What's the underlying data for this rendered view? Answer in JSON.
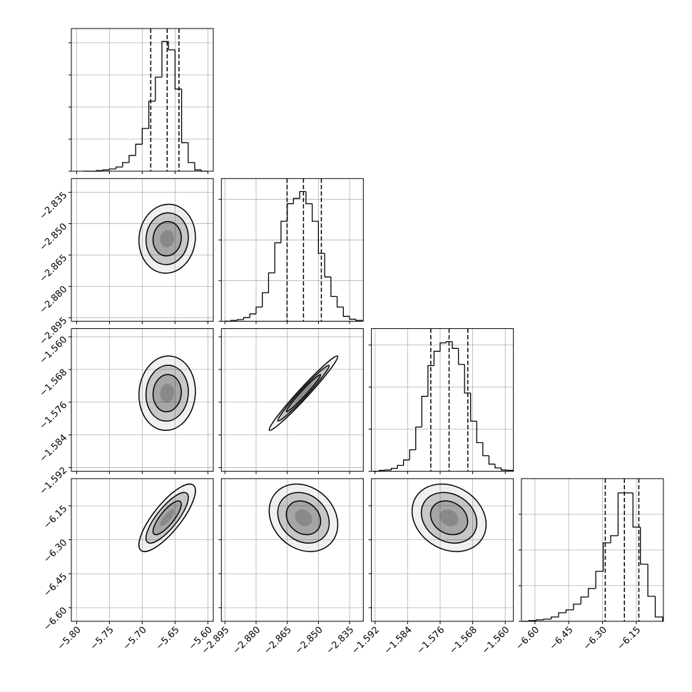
{
  "chart_data": {
    "type": "corner",
    "grid": true,
    "color": "#000000",
    "grid_color": "#b0b0b0",
    "levels": [
      0.5,
      1,
      1.5,
      2
    ],
    "parameters": [
      {
        "lim": [
          -5.808,
          -5.5917
        ],
        "ticks": [
          {
            "value": -5.8,
            "label": "−5.80"
          },
          {
            "value": -5.75,
            "label": "−5.75"
          },
          {
            "value": -5.7,
            "label": "−5.70"
          },
          {
            "value": -5.65,
            "label": "−5.65"
          },
          {
            "value": -5.6,
            "label": "−5.60"
          }
        ],
        "bins": [
          -5.79,
          -5.78,
          -5.77,
          -5.76,
          -5.75,
          -5.74,
          -5.73,
          -5.72,
          -5.71,
          -5.7,
          -5.69,
          -5.68,
          -5.67,
          -5.66,
          -5.65,
          -5.64,
          -5.63,
          -5.62,
          -5.61,
          -5.6
        ],
        "counts": [
          0,
          0,
          20,
          40,
          70,
          130,
          270,
          490,
          840,
          1330,
          2180,
          2930,
          4040,
          3780,
          2560,
          890,
          270,
          40,
          0
        ],
        "hist_ylim": [
          0,
          4444
        ],
        "hist_yticks": [
          0,
          1000,
          2000,
          3000,
          4000
        ],
        "quantiles": [
          -5.687,
          -5.662,
          -5.644
        ]
      },
      {
        "lim": [
          -2.8967,
          -2.8284
        ],
        "ticks": [
          {
            "value": -2.895,
            "label": "−2.895"
          },
          {
            "value": -2.88,
            "label": "−2.880"
          },
          {
            "value": -2.865,
            "label": "−2.865"
          },
          {
            "value": -2.85,
            "label": "−2.850"
          },
          {
            "value": -2.835,
            "label": "−2.835"
          }
        ],
        "bins": [
          -2.895,
          -2.892,
          -2.889,
          -2.886,
          -2.883,
          -2.88,
          -2.877,
          -2.874,
          -2.871,
          -2.868,
          -2.865,
          -2.862,
          -2.859,
          -2.856,
          -2.853,
          -2.85,
          -2.847,
          -2.844,
          -2.841,
          -2.838,
          -2.835,
          -2.832,
          -2.829
        ],
        "counts": [
          0,
          20,
          40,
          90,
          180,
          350,
          700,
          1190,
          1930,
          2460,
          2890,
          3020,
          3190,
          2890,
          2460,
          1670,
          1090,
          610,
          350,
          120,
          50,
          20
        ],
        "hist_ylim": [
          0,
          3509
        ],
        "hist_yticks": [
          0,
          1000,
          2000,
          3000
        ],
        "quantiles": [
          -2.8651,
          -2.8572,
          -2.8486
        ]
      },
      {
        "lim": [
          -1.5929,
          -1.558
        ],
        "ticks": [
          {
            "value": -1.592,
            "label": "−1.592"
          },
          {
            "value": -1.584,
            "label": "−1.584"
          },
          {
            "value": -1.576,
            "label": "−1.576"
          },
          {
            "value": -1.568,
            "label": "−1.568"
          },
          {
            "value": -1.56,
            "label": "−1.560"
          }
        ],
        "bins": [
          -1.5925,
          -1.591,
          -1.5895,
          -1.588,
          -1.5865,
          -1.585,
          -1.5835,
          -1.582,
          -1.5805,
          -1.579,
          -1.5775,
          -1.576,
          -1.5745,
          -1.573,
          -1.5715,
          -1.57,
          -1.5685,
          -1.567,
          -1.5655,
          -1.564,
          -1.5625,
          -1.561,
          -1.5595,
          -1.558
        ],
        "counts": [
          0,
          20,
          30,
          70,
          140,
          270,
          510,
          1050,
          1780,
          2510,
          2850,
          3050,
          3080,
          2920,
          2540,
          1860,
          1190,
          680,
          370,
          170,
          80,
          30,
          20
        ],
        "hist_ylim": [
          0,
          3390
        ],
        "hist_yticks": [
          0,
          1000,
          2000,
          3000
        ],
        "quantiles": [
          -1.5783,
          -1.5738,
          -1.5692
        ]
      },
      {
        "lim": [
          -6.66,
          -6.03
        ],
        "ticks": [
          {
            "value": -6.6,
            "label": "−6.60"
          },
          {
            "value": -6.45,
            "label": "−6.45"
          },
          {
            "value": -6.3,
            "label": "−6.30"
          },
          {
            "value": -6.15,
            "label": "−6.15"
          }
        ],
        "bins": [
          -6.66,
          -6.627,
          -6.594,
          -6.561,
          -6.528,
          -6.495,
          -6.462,
          -6.429,
          -6.396,
          -6.363,
          -6.33,
          -6.297,
          -6.264,
          -6.231,
          -6.198,
          -6.165,
          -6.132,
          -6.099,
          -6.066,
          -6.033
        ],
        "counts": [
          0,
          20,
          40,
          60,
          120,
          240,
          320,
          480,
          680,
          920,
          1400,
          2200,
          2400,
          3600,
          3600,
          2640,
          1600,
          700,
          120
        ],
        "hist_ylim": [
          0,
          4000
        ],
        "hist_yticks": [
          0,
          1000,
          2000,
          3000
        ],
        "quantiles": [
          -6.288,
          -6.203,
          -6.139
        ]
      }
    ],
    "pairs": [
      {
        "x": 0,
        "y": 1,
        "rho": 0.05
      },
      {
        "x": 0,
        "y": 2,
        "rho": 0.05
      },
      {
        "x": 0,
        "y": 3,
        "rho": 0.8
      },
      {
        "x": 1,
        "y": 2,
        "rho": 0.98
      },
      {
        "x": 1,
        "y": 3,
        "rho": -0.2
      },
      {
        "x": 2,
        "y": 3,
        "rho": -0.2
      }
    ]
  }
}
